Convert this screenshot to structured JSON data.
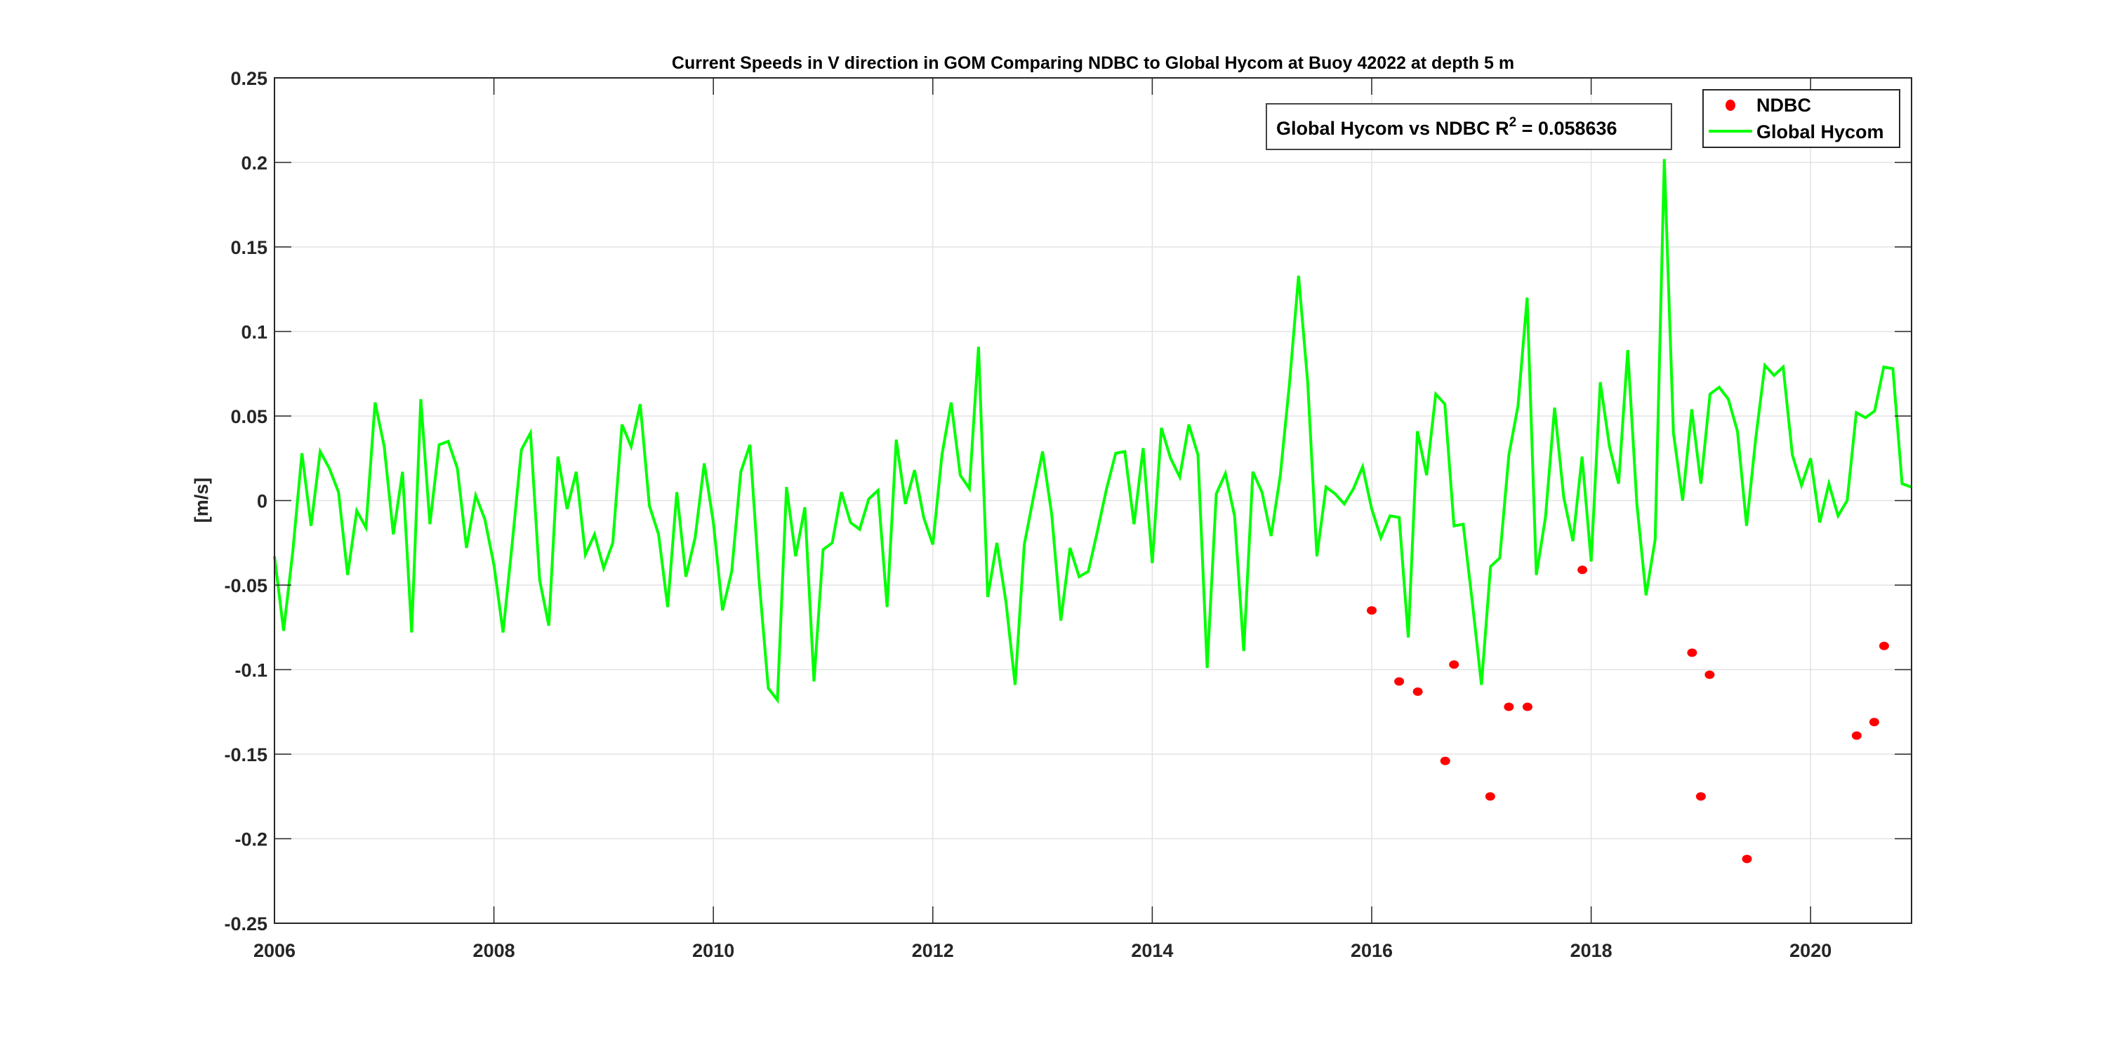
{
  "chart_data": {
    "type": "line",
    "title": "Current Speeds in V direction in GOM Comparing NDBC to Global Hycom at Buoy  42022  at depth  5 m",
    "xlabel": "",
    "ylabel": "[m/s]",
    "xlim": [
      2006,
      2020.92
    ],
    "ylim": [
      -0.25,
      0.25
    ],
    "xticks": [
      2006,
      2008,
      2010,
      2012,
      2014,
      2016,
      2018,
      2020
    ],
    "xtick_labels": [
      "2006",
      "2008",
      "2010",
      "2012",
      "2014",
      "2016",
      "2018",
      "2020"
    ],
    "yticks": [
      -0.25,
      -0.2,
      -0.15,
      -0.1,
      -0.05,
      0,
      0.05,
      0.1,
      0.15,
      0.2,
      0.25
    ],
    "ytick_labels": [
      "-0.25",
      "-0.2",
      "-0.15",
      "-0.1",
      "-0.05",
      "0",
      "0.05",
      "0.1",
      "0.15",
      "0.2",
      "0.25"
    ],
    "grid": true,
    "legend_position": "top-right",
    "annotation": {
      "text": "Global Hycom vs NDBC R",
      "sup": "2",
      "rest": " = 0.058636"
    },
    "series": [
      {
        "name": "Global Hycom",
        "kind": "line",
        "color": "#00ff00",
        "x_start": 2006.0,
        "x_step_months": 1,
        "values": [
          -0.033,
          -0.077,
          -0.03,
          0.028,
          -0.015,
          0.029,
          0.019,
          0.005,
          -0.044,
          -0.006,
          -0.016,
          0.058,
          0.032,
          -0.02,
          0.017,
          -0.078,
          0.06,
          -0.014,
          0.033,
          0.035,
          0.019,
          -0.028,
          0.003,
          -0.011,
          -0.038,
          -0.078,
          -0.025,
          0.03,
          0.04,
          -0.047,
          -0.074,
          0.026,
          -0.005,
          0.017,
          -0.032,
          -0.02,
          -0.04,
          -0.025,
          0.045,
          0.032,
          0.057,
          -0.003,
          -0.02,
          -0.063,
          0.005,
          -0.045,
          -0.022,
          0.022,
          -0.013,
          -0.065,
          -0.042,
          0.017,
          0.033,
          -0.047,
          -0.111,
          -0.118,
          0.008,
          -0.033,
          -0.004,
          -0.107,
          -0.029,
          -0.025,
          0.005,
          -0.013,
          -0.017,
          0.001,
          0.006,
          -0.063,
          0.036,
          -0.002,
          0.018,
          -0.01,
          -0.026,
          0.027,
          0.058,
          0.015,
          0.007,
          0.091,
          -0.057,
          -0.025,
          -0.06,
          -0.109,
          -0.026,
          0.002,
          0.029,
          -0.008,
          -0.071,
          -0.028,
          -0.045,
          -0.042,
          -0.018,
          0.007,
          0.028,
          0.029,
          -0.014,
          0.031,
          -0.037,
          0.043,
          0.025,
          0.014,
          0.045,
          0.027,
          -0.099,
          0.004,
          0.016,
          -0.009,
          -0.089,
          0.017,
          0.005,
          -0.021,
          0.015,
          0.069,
          0.133,
          0.07,
          -0.033,
          0.008,
          0.004,
          -0.002,
          0.007,
          0.02,
          -0.005,
          -0.022,
          -0.009,
          -0.01,
          -0.081,
          0.041,
          0.015,
          0.063,
          0.057,
          -0.015,
          -0.014,
          -0.06,
          -0.109,
          -0.039,
          -0.034,
          0.027,
          0.056,
          0.12,
          -0.044,
          -0.01,
          0.055,
          0.002,
          -0.024,
          0.026,
          -0.036,
          0.07,
          0.032,
          0.01,
          0.089,
          -0.002,
          -0.056,
          -0.023,
          0.202,
          0.04,
          0.0,
          0.054,
          0.01,
          0.063,
          0.067,
          0.06,
          0.041,
          -0.015,
          0.037,
          0.08,
          0.074,
          0.079,
          0.027,
          0.009,
          0.025,
          -0.013,
          0.01,
          -0.009,
          0.0,
          0.052,
          0.049,
          0.053,
          0.079,
          0.078,
          0.01,
          0.008
        ]
      },
      {
        "name": "NDBC",
        "kind": "scatter",
        "color": "#ff0000",
        "points": [
          [
            2016.0,
            -0.065
          ],
          [
            2016.25,
            -0.107
          ],
          [
            2016.42,
            -0.113
          ],
          [
            2016.67,
            -0.154
          ],
          [
            2016.75,
            -0.097
          ],
          [
            2017.08,
            -0.175
          ],
          [
            2017.25,
            -0.122
          ],
          [
            2017.42,
            -0.122
          ],
          [
            2017.92,
            -0.041
          ],
          [
            2018.92,
            -0.09
          ],
          [
            2019.0,
            -0.175
          ],
          [
            2019.08,
            -0.103
          ],
          [
            2019.42,
            -0.212
          ],
          [
            2020.42,
            -0.139
          ],
          [
            2020.58,
            -0.131
          ],
          [
            2020.67,
            -0.086
          ]
        ]
      }
    ],
    "legend": [
      "NDBC",
      "Global Hycom"
    ]
  }
}
